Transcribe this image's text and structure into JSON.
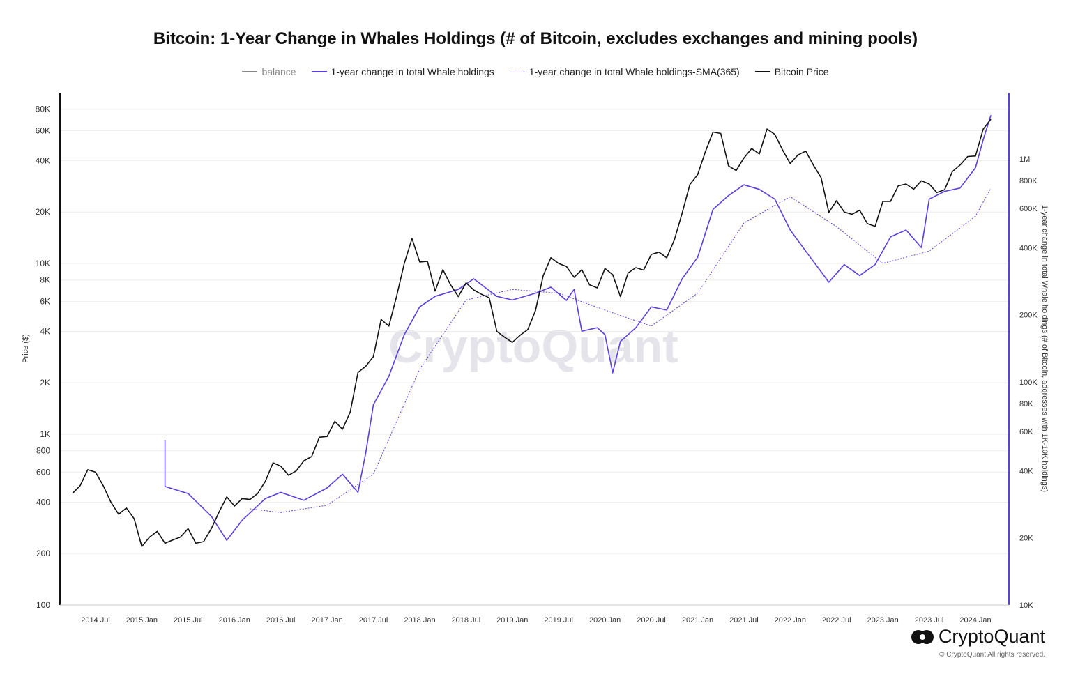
{
  "title": "Bitcoin: 1-Year Change in Whales Holdings (# of Bitcoin, excludes exchanges and mining pools)",
  "legend": [
    {
      "label": "balance",
      "color": "#888888",
      "hidden": true
    },
    {
      "label": "1-year change in total Whale holdings",
      "color": "#5b3fe0"
    },
    {
      "label": "1-year change in total Whale holdings-SMA(365)",
      "color": "#5b3fe0",
      "dashed": true
    },
    {
      "label": "Bitcoin Price",
      "color": "#111111"
    }
  ],
  "watermark": "CryptoQuant",
  "logo_text": "CryptoQuant",
  "copyright": "© CryptoQuant All rights reserved.",
  "chart_data": {
    "type": "line",
    "title": "Bitcoin: 1-Year Change in Whales Holdings (# of Bitcoin, excludes exchanges and mining pools)",
    "ylabel_left": "Price ($)",
    "ylabel_right": "1-year change in total Whale holdings (# of Bitcoin, addresses with 1K-10K holdings)",
    "y_left_scale": "log",
    "y_left_range": [
      100,
      100000
    ],
    "y_right_scale": "log",
    "y_right_range": [
      10000,
      2000000
    ],
    "x_ticks": [
      "2014 Jul",
      "2015 Jan",
      "2015 Jul",
      "2016 Jan",
      "2016 Jul",
      "2017 Jan",
      "2017 Jul",
      "2018 Jan",
      "2018 Jul",
      "2019 Jan",
      "2019 Jul",
      "2020 Jan",
      "2020 Jul",
      "2021 Jan",
      "2021 Jul",
      "2022 Jan",
      "2022 Jul",
      "2023 Jan",
      "2023 Jul",
      "2024 Jan"
    ],
    "y_left_ticks": [
      {
        "v": 100,
        "l": "100"
      },
      {
        "v": 200,
        "l": "200"
      },
      {
        "v": 400,
        "l": "400"
      },
      {
        "v": 600,
        "l": "600"
      },
      {
        "v": 800,
        "l": "800"
      },
      {
        "v": 1000,
        "l": "1K"
      },
      {
        "v": 2000,
        "l": "2K"
      },
      {
        "v": 4000,
        "l": "4K"
      },
      {
        "v": 6000,
        "l": "6K"
      },
      {
        "v": 8000,
        "l": "8K"
      },
      {
        "v": 10000,
        "l": "10K"
      },
      {
        "v": 20000,
        "l": "20K"
      },
      {
        "v": 40000,
        "l": "40K"
      },
      {
        "v": 60000,
        "l": "60K"
      },
      {
        "v": 80000,
        "l": "80K"
      }
    ],
    "y_right_ticks": [
      {
        "v": 10000,
        "l": "10K"
      },
      {
        "v": 20000,
        "l": "20K"
      },
      {
        "v": 40000,
        "l": "40K"
      },
      {
        "v": 60000,
        "l": "60K"
      },
      {
        "v": 80000,
        "l": "80K"
      },
      {
        "v": 100000,
        "l": "100K"
      },
      {
        "v": 200000,
        "l": "200K"
      },
      {
        "v": 400000,
        "l": "400K"
      },
      {
        "v": 600000,
        "l": "600K"
      },
      {
        "v": 800000,
        "l": "800K"
      },
      {
        "v": 1000000,
        "l": "1M"
      }
    ],
    "grid": true,
    "legend_position": "top",
    "series": [
      {
        "name": "Bitcoin Price",
        "axis": "left",
        "color": "#111111",
        "points": [
          [
            "2014-04",
            450
          ],
          [
            "2014-05",
            500
          ],
          [
            "2014-06",
            620
          ],
          [
            "2014-07",
            600
          ],
          [
            "2014-08",
            500
          ],
          [
            "2014-09",
            400
          ],
          [
            "2014-10",
            340
          ],
          [
            "2014-11",
            370
          ],
          [
            "2014-12",
            320
          ],
          [
            "2015-01",
            220
          ],
          [
            "2015-02",
            250
          ],
          [
            "2015-03",
            270
          ],
          [
            "2015-04",
            230
          ],
          [
            "2015-05",
            240
          ],
          [
            "2015-06",
            250
          ],
          [
            "2015-07",
            280
          ],
          [
            "2015-08",
            230
          ],
          [
            "2015-09",
            235
          ],
          [
            "2015-10",
            280
          ],
          [
            "2015-11",
            350
          ],
          [
            "2015-12",
            430
          ],
          [
            "2016-01",
            380
          ],
          [
            "2016-02",
            420
          ],
          [
            "2016-03",
            415
          ],
          [
            "2016-04",
            450
          ],
          [
            "2016-05",
            530
          ],
          [
            "2016-06",
            680
          ],
          [
            "2016-07",
            650
          ],
          [
            "2016-08",
            575
          ],
          [
            "2016-09",
            610
          ],
          [
            "2016-10",
            700
          ],
          [
            "2016-11",
            740
          ],
          [
            "2016-12",
            960
          ],
          [
            "2017-01",
            970
          ],
          [
            "2017-02",
            1190
          ],
          [
            "2017-03",
            1070
          ],
          [
            "2017-04",
            1350
          ],
          [
            "2017-05",
            2300
          ],
          [
            "2017-06",
            2500
          ],
          [
            "2017-07",
            2850
          ],
          [
            "2017-08",
            4700
          ],
          [
            "2017-09",
            4300
          ],
          [
            "2017-10",
            6400
          ],
          [
            "2017-11",
            10000
          ],
          [
            "2017-12",
            14000
          ],
          [
            "2018-01",
            10200
          ],
          [
            "2018-02",
            10300
          ],
          [
            "2018-03",
            6900
          ],
          [
            "2018-04",
            9200
          ],
          [
            "2018-05",
            7500
          ],
          [
            "2018-06",
            6400
          ],
          [
            "2018-07",
            7700
          ],
          [
            "2018-08",
            7000
          ],
          [
            "2018-09",
            6600
          ],
          [
            "2018-10",
            6300
          ],
          [
            "2018-11",
            4000
          ],
          [
            "2018-12",
            3700
          ],
          [
            "2019-01",
            3450
          ],
          [
            "2019-02",
            3800
          ],
          [
            "2019-03",
            4100
          ],
          [
            "2019-04",
            5300
          ],
          [
            "2019-05",
            8500
          ],
          [
            "2019-06",
            10800
          ],
          [
            "2019-07",
            10000
          ],
          [
            "2019-08",
            9600
          ],
          [
            "2019-09",
            8300
          ],
          [
            "2019-10",
            9200
          ],
          [
            "2019-11",
            7500
          ],
          [
            "2019-12",
            7200
          ],
          [
            "2020-01",
            9350
          ],
          [
            "2020-02",
            8600
          ],
          [
            "2020-03",
            6400
          ],
          [
            "2020-04",
            8800
          ],
          [
            "2020-05",
            9450
          ],
          [
            "2020-06",
            9150
          ],
          [
            "2020-07",
            11300
          ],
          [
            "2020-08",
            11650
          ],
          [
            "2020-09",
            10800
          ],
          [
            "2020-10",
            13800
          ],
          [
            "2020-11",
            19700
          ],
          [
            "2020-12",
            29000
          ],
          [
            "2021-01",
            33100
          ],
          [
            "2021-02",
            45000
          ],
          [
            "2021-03",
            58800
          ],
          [
            "2021-04",
            57700
          ],
          [
            "2021-05",
            37300
          ],
          [
            "2021-06",
            35000
          ],
          [
            "2021-07",
            41500
          ],
          [
            "2021-08",
            47100
          ],
          [
            "2021-09",
            43800
          ],
          [
            "2021-10",
            61300
          ],
          [
            "2021-11",
            57000
          ],
          [
            "2021-12",
            46300
          ],
          [
            "2022-01",
            38500
          ],
          [
            "2022-02",
            43200
          ],
          [
            "2022-03",
            45500
          ],
          [
            "2022-04",
            37700
          ],
          [
            "2022-05",
            31800
          ],
          [
            "2022-06",
            19900
          ],
          [
            "2022-07",
            23300
          ],
          [
            "2022-08",
            20000
          ],
          [
            "2022-09",
            19400
          ],
          [
            "2022-10",
            20500
          ],
          [
            "2022-11",
            17100
          ],
          [
            "2022-12",
            16500
          ],
          [
            "2023-01",
            23100
          ],
          [
            "2023-02",
            23100
          ],
          [
            "2023-03",
            28500
          ],
          [
            "2023-04",
            29200
          ],
          [
            "2023-05",
            27200
          ],
          [
            "2023-06",
            30500
          ],
          [
            "2023-07",
            29200
          ],
          [
            "2023-08",
            26000
          ],
          [
            "2023-09",
            27000
          ],
          [
            "2023-10",
            34500
          ],
          [
            "2023-11",
            37700
          ],
          [
            "2023-12",
            42300
          ],
          [
            "2024-01",
            42600
          ],
          [
            "2024-02",
            61200
          ],
          [
            "2024-03",
            70000
          ]
        ]
      },
      {
        "name": "1-year change in total Whale holdings",
        "axis": "right",
        "color": "#5b3fe0",
        "points": [
          [
            "2015-04",
            55000
          ],
          [
            "2015-04",
            34000
          ],
          [
            "2015-07",
            31600
          ],
          [
            "2015-10",
            25000
          ],
          [
            "2015-12",
            19500
          ],
          [
            "2016-02",
            24000
          ],
          [
            "2016-05",
            30000
          ],
          [
            "2016-07",
            32000
          ],
          [
            "2016-10",
            29500
          ],
          [
            "2017-01",
            33500
          ],
          [
            "2017-03",
            38600
          ],
          [
            "2017-05",
            32000
          ],
          [
            "2017-06",
            48000
          ],
          [
            "2017-07",
            79000
          ],
          [
            "2017-09",
            106000
          ],
          [
            "2017-11",
            163000
          ],
          [
            "2018-01",
            217000
          ],
          [
            "2018-03",
            242000
          ],
          [
            "2018-06",
            260000
          ],
          [
            "2018-08",
            290000
          ],
          [
            "2018-11",
            242000
          ],
          [
            "2019-01",
            233000
          ],
          [
            "2019-04",
            250000
          ],
          [
            "2019-06",
            266000
          ],
          [
            "2019-08",
            232000
          ],
          [
            "2019-09",
            260000
          ],
          [
            "2019-10",
            169000
          ],
          [
            "2019-12",
            175000
          ],
          [
            "2020-01",
            163000
          ],
          [
            "2020-02",
            110000
          ],
          [
            "2020-03",
            152000
          ],
          [
            "2020-05",
            175000
          ],
          [
            "2020-07",
            217000
          ],
          [
            "2020-09",
            210000
          ],
          [
            "2020-11",
            290000
          ],
          [
            "2021-01",
            362000
          ],
          [
            "2021-03",
            594000
          ],
          [
            "2021-05",
            685000
          ],
          [
            "2021-07",
            765000
          ],
          [
            "2021-09",
            730000
          ],
          [
            "2021-11",
            660000
          ],
          [
            "2022-01",
            480000
          ],
          [
            "2022-03",
            386000
          ],
          [
            "2022-05",
            312000
          ],
          [
            "2022-06",
            280000
          ],
          [
            "2022-08",
            336000
          ],
          [
            "2022-10",
            300000
          ],
          [
            "2022-12",
            336000
          ],
          [
            "2023-02",
            447000
          ],
          [
            "2023-04",
            480000
          ],
          [
            "2023-06",
            400000
          ],
          [
            "2023-07",
            660000
          ],
          [
            "2023-09",
            715000
          ],
          [
            "2023-11",
            740000
          ],
          [
            "2024-01",
            913000
          ],
          [
            "2024-02",
            1220000
          ],
          [
            "2024-03",
            1570000
          ]
        ]
      },
      {
        "name": "1-year change in total Whale holdings-SMA(365)",
        "axis": "right",
        "color": "#5b3fe0",
        "dashed": true,
        "points": [
          [
            "2016-03",
            27000
          ],
          [
            "2016-07",
            26000
          ],
          [
            "2017-01",
            28000
          ],
          [
            "2017-07",
            38600
          ],
          [
            "2018-01",
            114000
          ],
          [
            "2018-07",
            233000
          ],
          [
            "2019-01",
            260000
          ],
          [
            "2019-07",
            250000
          ],
          [
            "2020-01",
            210000
          ],
          [
            "2020-07",
            178000
          ],
          [
            "2021-01",
            250000
          ],
          [
            "2021-07",
            516000
          ],
          [
            "2022-01",
            677000
          ],
          [
            "2022-07",
            497000
          ],
          [
            "2023-01",
            340000
          ],
          [
            "2023-07",
            386000
          ],
          [
            "2024-01",
            553000
          ],
          [
            "2024-03",
            740000
          ]
        ]
      }
    ]
  }
}
